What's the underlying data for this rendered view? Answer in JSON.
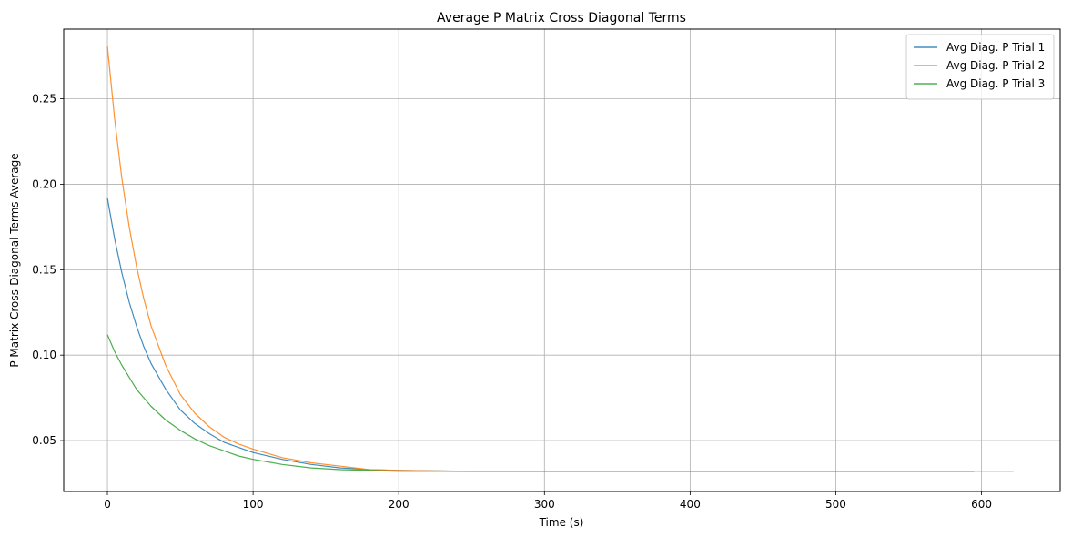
{
  "chart_data": {
    "type": "line",
    "title": "Average P Matrix Cross Diagonal Terms",
    "xlabel": "Time (s)",
    "ylabel": "P Matrix Cross-Diagonal Terms Average",
    "xlim": [
      -30,
      654
    ],
    "ylim": [
      0.0202,
      0.2908
    ],
    "xticks": [
      0,
      100,
      200,
      300,
      400,
      500,
      600
    ],
    "yticks": [
      0.05,
      0.1,
      0.15,
      0.2,
      0.25
    ],
    "ytick_labels": [
      "0.05",
      "0.10",
      "0.15",
      "0.20",
      "0.25"
    ],
    "grid": true,
    "legend_position": "top-right",
    "series": [
      {
        "name": "Avg Diag. P Trial 1",
        "color": "#1f77b4",
        "points": [
          [
            0,
            0.192
          ],
          [
            5,
            0.168
          ],
          [
            10,
            0.148
          ],
          [
            15,
            0.131
          ],
          [
            20,
            0.117
          ],
          [
            25,
            0.105
          ],
          [
            30,
            0.095
          ],
          [
            40,
            0.08
          ],
          [
            50,
            0.068
          ],
          [
            60,
            0.06
          ],
          [
            70,
            0.054
          ],
          [
            80,
            0.049
          ],
          [
            90,
            0.046
          ],
          [
            100,
            0.043
          ],
          [
            120,
            0.039
          ],
          [
            140,
            0.036
          ],
          [
            160,
            0.034
          ],
          [
            180,
            0.033
          ],
          [
            200,
            0.0325
          ],
          [
            250,
            0.032
          ],
          [
            300,
            0.032
          ],
          [
            400,
            0.032
          ],
          [
            500,
            0.032
          ],
          [
            595,
            0.032
          ]
        ]
      },
      {
        "name": "Avg Diag. P Trial 2",
        "color": "#ff7f0e",
        "points": [
          [
            0,
            0.281
          ],
          [
            5,
            0.238
          ],
          [
            10,
            0.203
          ],
          [
            15,
            0.175
          ],
          [
            20,
            0.152
          ],
          [
            25,
            0.133
          ],
          [
            30,
            0.117
          ],
          [
            40,
            0.094
          ],
          [
            50,
            0.077
          ],
          [
            60,
            0.066
          ],
          [
            70,
            0.058
          ],
          [
            80,
            0.052
          ],
          [
            90,
            0.048
          ],
          [
            100,
            0.045
          ],
          [
            120,
            0.04
          ],
          [
            140,
            0.037
          ],
          [
            160,
            0.035
          ],
          [
            180,
            0.033
          ],
          [
            200,
            0.0325
          ],
          [
            250,
            0.032
          ],
          [
            300,
            0.032
          ],
          [
            400,
            0.032
          ],
          [
            500,
            0.032
          ],
          [
            600,
            0.032
          ],
          [
            622,
            0.032
          ]
        ]
      },
      {
        "name": "Avg Diag. P Trial 3",
        "color": "#2ca02c",
        "points": [
          [
            0,
            0.112
          ],
          [
            5,
            0.102
          ],
          [
            10,
            0.094
          ],
          [
            15,
            0.087
          ],
          [
            20,
            0.08
          ],
          [
            25,
            0.075
          ],
          [
            30,
            0.07
          ],
          [
            40,
            0.062
          ],
          [
            50,
            0.056
          ],
          [
            60,
            0.051
          ],
          [
            70,
            0.047
          ],
          [
            80,
            0.044
          ],
          [
            90,
            0.041
          ],
          [
            100,
            0.039
          ],
          [
            120,
            0.036
          ],
          [
            140,
            0.034
          ],
          [
            160,
            0.033
          ],
          [
            180,
            0.0325
          ],
          [
            200,
            0.032
          ],
          [
            250,
            0.032
          ],
          [
            300,
            0.032
          ],
          [
            400,
            0.032
          ],
          [
            500,
            0.032
          ],
          [
            595,
            0.032
          ]
        ]
      }
    ]
  }
}
